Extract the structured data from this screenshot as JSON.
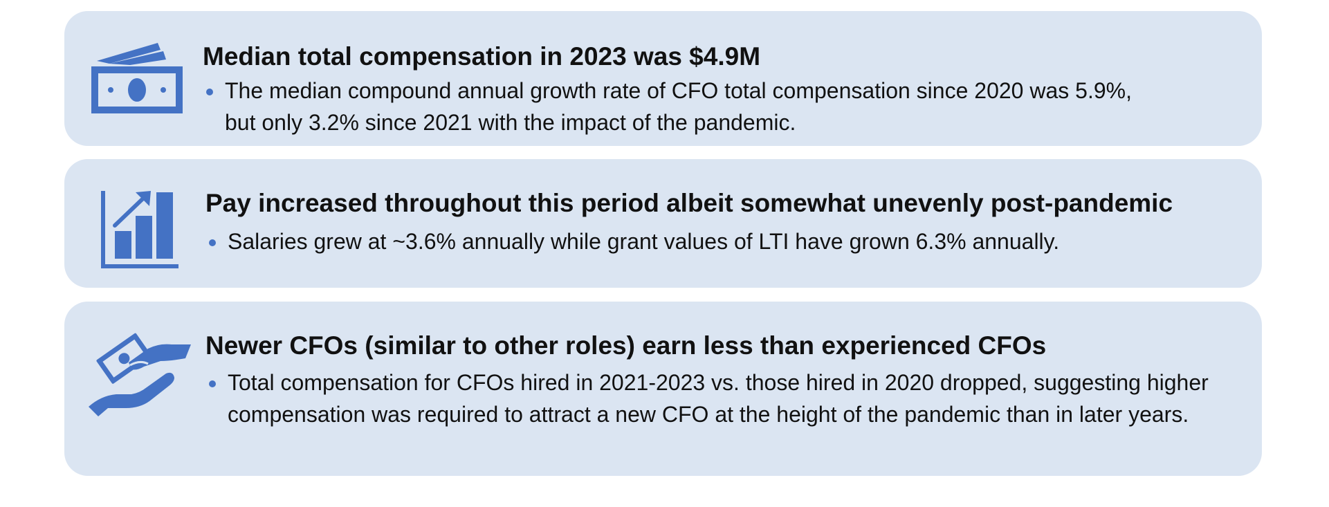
{
  "colors": {
    "card_background": "#dbe5f2",
    "accent": "#4472c4",
    "text": "#111111"
  },
  "cards": [
    {
      "icon": "money-bill-icon",
      "title": "Median total compensation in 2023 was $4.9M",
      "bullet": "The median compound annual growth rate of CFO total compensation since 2020 was 5.9%, but only 3.2% since 2021 with the impact of the pandemic."
    },
    {
      "icon": "growth-chart-icon",
      "title": "Pay increased throughout this period albeit somewhat unevenly post-pandemic",
      "bullet": "Salaries grew at ~3.6% annually while grant values of LTI have grown 6.3% annually."
    },
    {
      "icon": "hand-giving-money-icon",
      "title": "Newer CFOs (similar to other roles) earn less than experienced CFOs",
      "bullet": "Total compensation for CFOs hired in 2021-2023 vs. those hired in 2020 dropped, suggesting higher compensation was required to attract a new CFO at the height of the pandemic than in later years."
    }
  ]
}
